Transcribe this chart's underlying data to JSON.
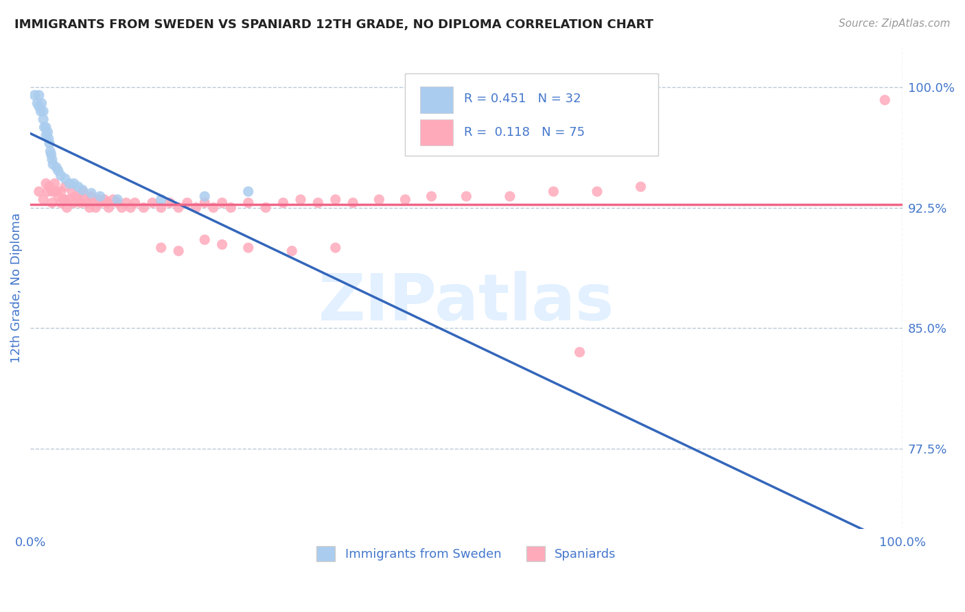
{
  "title": "IMMIGRANTS FROM SWEDEN VS SPANIARD 12TH GRADE, NO DIPLOMA CORRELATION CHART",
  "source": "Source: ZipAtlas.com",
  "ylabel": "12th Grade, No Diploma",
  "xmin": 0.0,
  "xmax": 1.0,
  "ymin": 0.725,
  "ymax": 1.025,
  "yticks": [
    0.775,
    0.85,
    0.925,
    1.0
  ],
  "ytick_labels": [
    "77.5%",
    "85.0%",
    "92.5%",
    "100.0%"
  ],
  "blue_R": 0.451,
  "blue_N": 32,
  "pink_R": 0.118,
  "pink_N": 75,
  "blue_color": "#AACCEE",
  "pink_color": "#FFAABB",
  "blue_line_color": "#3366BB",
  "pink_line_color": "#EE6688",
  "legend_label_blue": "Immigrants from Sweden",
  "legend_label_pink": "Spaniards",
  "blue_scatter_x": [
    0.005,
    0.008,
    0.01,
    0.01,
    0.012,
    0.013,
    0.015,
    0.015,
    0.016,
    0.018,
    0.018,
    0.02,
    0.021,
    0.022,
    0.023,
    0.024,
    0.025,
    0.026,
    0.03,
    0.032,
    0.035,
    0.04,
    0.045,
    0.05,
    0.055,
    0.06,
    0.07,
    0.08,
    0.1,
    0.15,
    0.2,
    0.25
  ],
  "blue_scatter_y": [
    0.995,
    0.99,
    0.995,
    0.988,
    0.985,
    0.99,
    0.985,
    0.98,
    0.975,
    0.975,
    0.97,
    0.972,
    0.968,
    0.965,
    0.96,
    0.958,
    0.955,
    0.952,
    0.95,
    0.948,
    0.945,
    0.943,
    0.94,
    0.94,
    0.938,
    0.936,
    0.934,
    0.932,
    0.93,
    0.93,
    0.932,
    0.935
  ],
  "pink_scatter_x": [
    0.01,
    0.015,
    0.018,
    0.02,
    0.022,
    0.025,
    0.025,
    0.028,
    0.03,
    0.032,
    0.035,
    0.035,
    0.038,
    0.04,
    0.04,
    0.042,
    0.045,
    0.048,
    0.05,
    0.052,
    0.055,
    0.058,
    0.06,
    0.062,
    0.065,
    0.068,
    0.07,
    0.072,
    0.075,
    0.078,
    0.08,
    0.085,
    0.088,
    0.09,
    0.095,
    0.1,
    0.105,
    0.11,
    0.115,
    0.12,
    0.13,
    0.14,
    0.15,
    0.16,
    0.17,
    0.18,
    0.19,
    0.2,
    0.21,
    0.22,
    0.23,
    0.25,
    0.27,
    0.29,
    0.31,
    0.33,
    0.35,
    0.37,
    0.4,
    0.43,
    0.46,
    0.5,
    0.55,
    0.6,
    0.65,
    0.7,
    0.15,
    0.2,
    0.17,
    0.22,
    0.25,
    0.3,
    0.35,
    0.63,
    0.98
  ],
  "pink_scatter_y": [
    0.935,
    0.93,
    0.94,
    0.935,
    0.938,
    0.935,
    0.928,
    0.94,
    0.935,
    0.932,
    0.935,
    0.928,
    0.93,
    0.938,
    0.93,
    0.925,
    0.93,
    0.935,
    0.928,
    0.932,
    0.93,
    0.928,
    0.935,
    0.93,
    0.928,
    0.925,
    0.932,
    0.928,
    0.925,
    0.93,
    0.928,
    0.93,
    0.928,
    0.925,
    0.93,
    0.928,
    0.925,
    0.928,
    0.925,
    0.928,
    0.925,
    0.928,
    0.925,
    0.928,
    0.925,
    0.928,
    0.925,
    0.928,
    0.925,
    0.928,
    0.925,
    0.928,
    0.925,
    0.928,
    0.93,
    0.928,
    0.93,
    0.928,
    0.93,
    0.93,
    0.932,
    0.932,
    0.932,
    0.935,
    0.935,
    0.938,
    0.9,
    0.905,
    0.898,
    0.902,
    0.9,
    0.898,
    0.9,
    0.835,
    0.992
  ],
  "title_color": "#222222",
  "axis_label_color": "#4477CC",
  "tick_color": "#4477CC",
  "grid_color": "#AABBCC",
  "background_color": "#FFFFFF",
  "watermark_text": "ZIPatlas",
  "watermark_color": "#DDEEFF"
}
